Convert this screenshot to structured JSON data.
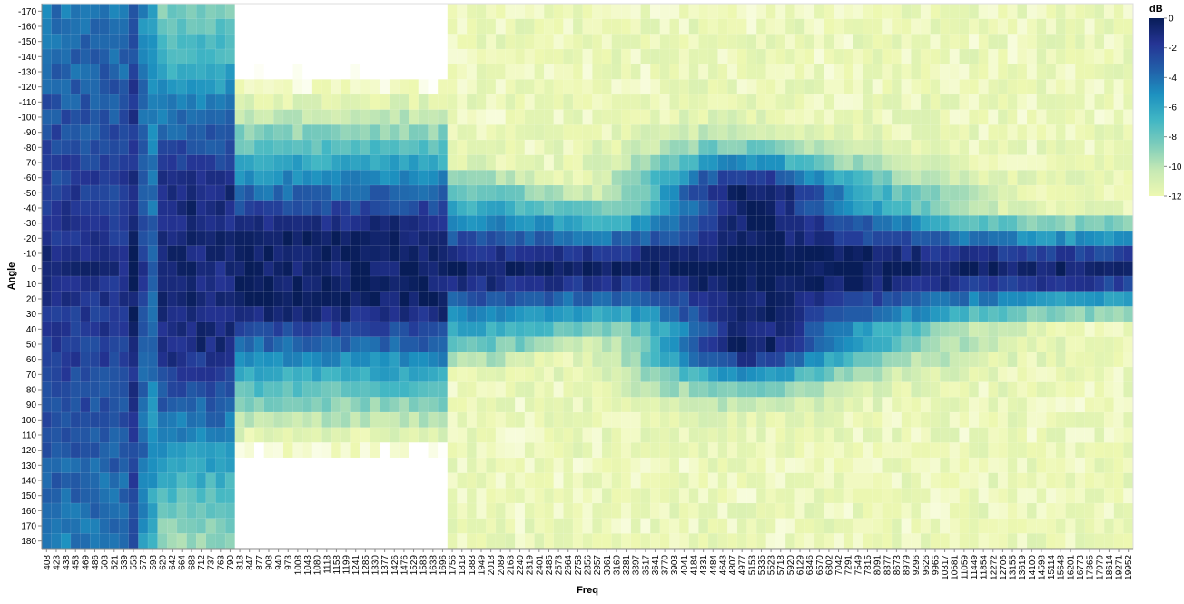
{
  "chart_data": {
    "type": "heatmap",
    "title": "",
    "xlabel": "Freq",
    "ylabel": "Angle",
    "x_categories": [
      "408",
      "423",
      "438",
      "453",
      "469",
      "486",
      "503",
      "521",
      "539",
      "558",
      "578",
      "598",
      "620",
      "642",
      "664",
      "688",
      "712",
      "737",
      "763",
      "790",
      "818",
      "847",
      "877",
      "908",
      "940",
      "973",
      "1008",
      "1043",
      "1080",
      "1118",
      "1158",
      "1199",
      "1241",
      "1285",
      "1330",
      "1377",
      "1426",
      "1476",
      "1529",
      "1583",
      "1638",
      "1696",
      "1756",
      "1818",
      "1883",
      "1949",
      "2018",
      "2089",
      "2163",
      "2240",
      "2319",
      "2401",
      "2485",
      "2573",
      "2664",
      "2758",
      "2856",
      "2957",
      "3061",
      "3169",
      "3281",
      "3397",
      "3517",
      "3641",
      "3770",
      "3903",
      "4041",
      "4184",
      "4331",
      "4484",
      "4643",
      "4807",
      "4977",
      "5153",
      "5335",
      "5523",
      "5718",
      "5920",
      "6129",
      "6346",
      "6570",
      "6802",
      "7042",
      "7291",
      "7549",
      "7815",
      "8091",
      "8377",
      "8673",
      "8979",
      "9296",
      "9626",
      "9965",
      "10317",
      "10681",
      "11059",
      "11449",
      "11854",
      "12272",
      "12706",
      "13155",
      "13619",
      "14100",
      "14598",
      "15114",
      "15648",
      "16201",
      "16773",
      "17365",
      "17979",
      "18614",
      "19271",
      "19952"
    ],
    "y_categories": [
      "-170",
      "-160",
      "-150",
      "-140",
      "-130",
      "-120",
      "-110",
      "-100",
      "-90",
      "-80",
      "-70",
      "-60",
      "-50",
      "-40",
      "-30",
      "-20",
      "-10",
      "0",
      "10",
      "20",
      "30",
      "40",
      "50",
      "60",
      "70",
      "80",
      "90",
      "100",
      "110",
      "120",
      "130",
      "140",
      "150",
      "160",
      "170",
      "180"
    ],
    "value_unit": "dB",
    "value_range": [
      -12,
      0
    ],
    "legend": {
      "title": "dB",
      "ticks": [
        "0",
        "-2",
        "-4",
        "-6",
        "-8",
        "-10",
        "-12"
      ],
      "position": "top-right"
    },
    "colors": [
      "#edf8b1",
      "#c7e9b4",
      "#7fcdbb",
      "#41b6c4",
      "#1d91c0",
      "#225ea8",
      "#253494",
      "#081d58"
    ],
    "low_color": "#ffffff",
    "grid": false,
    "note_values": "values are estimated per cell from the color gradient"
  }
}
